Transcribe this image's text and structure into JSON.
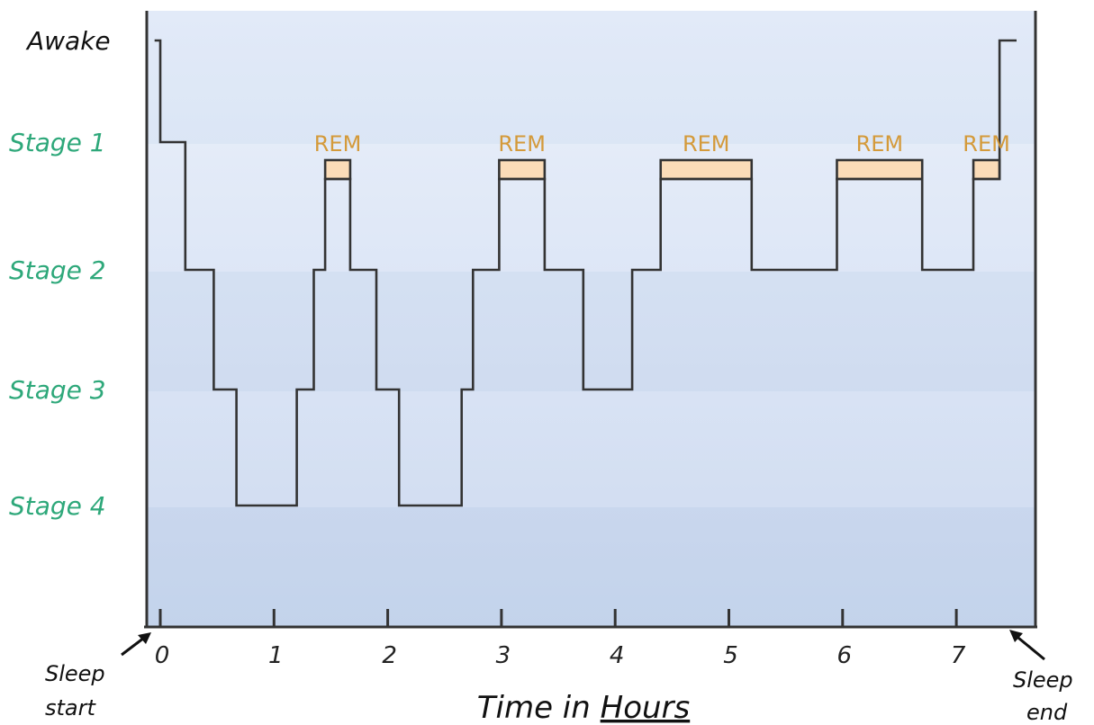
{
  "chart_data": {
    "type": "line",
    "style": "step",
    "xlabel": "Time in Hours",
    "xlabel_underlined_word": "Hours",
    "xticks": [
      0,
      1,
      2,
      3,
      4,
      5,
      6,
      7
    ],
    "xlim": [
      -0.1,
      7.55
    ],
    "levels": [
      "Awake",
      "Stage 1",
      "Stage 2",
      "Stage 3",
      "Stage 4"
    ],
    "rem_label": "REM",
    "annotations": {
      "start": [
        "Sleep",
        "start"
      ],
      "end": [
        "Sleep",
        "end"
      ]
    },
    "colors": {
      "stage_label": "#2ea87a",
      "awake_label": "#111111",
      "rem": "#d49a3a",
      "rem_fill": "#fbdcb8",
      "line": "#333333",
      "axis": "#333333",
      "band_top": "#e8effb",
      "band_bottom": "#c8d6ee"
    },
    "hypnogram": [
      {
        "t": -0.05,
        "stage": "Awake"
      },
      {
        "t": 0.0,
        "stage": "Stage 1"
      },
      {
        "t": 0.22,
        "stage": "Stage 2"
      },
      {
        "t": 0.47,
        "stage": "Stage 3"
      },
      {
        "t": 0.67,
        "stage": "Stage 4"
      },
      {
        "t": 1.2,
        "stage": "Stage 3"
      },
      {
        "t": 1.35,
        "stage": "Stage 2"
      },
      {
        "t": 1.45,
        "stage": "REM"
      },
      {
        "t": 1.67,
        "stage": "Stage 2"
      },
      {
        "t": 1.9,
        "stage": "Stage 3"
      },
      {
        "t": 2.1,
        "stage": "Stage 4"
      },
      {
        "t": 2.65,
        "stage": "Stage 3"
      },
      {
        "t": 2.75,
        "stage": "Stage 2"
      },
      {
        "t": 2.98,
        "stage": "REM"
      },
      {
        "t": 3.38,
        "stage": "Stage 2"
      },
      {
        "t": 3.72,
        "stage": "Stage 3"
      },
      {
        "t": 4.15,
        "stage": "Stage 2"
      },
      {
        "t": 4.4,
        "stage": "REM"
      },
      {
        "t": 5.2,
        "stage": "Stage 2"
      },
      {
        "t": 5.95,
        "stage": "REM"
      },
      {
        "t": 6.7,
        "stage": "Stage 2"
      },
      {
        "t": 7.15,
        "stage": "REM"
      },
      {
        "t": 7.38,
        "stage": "Awake"
      },
      {
        "t": 7.53,
        "stage": "end"
      }
    ]
  }
}
